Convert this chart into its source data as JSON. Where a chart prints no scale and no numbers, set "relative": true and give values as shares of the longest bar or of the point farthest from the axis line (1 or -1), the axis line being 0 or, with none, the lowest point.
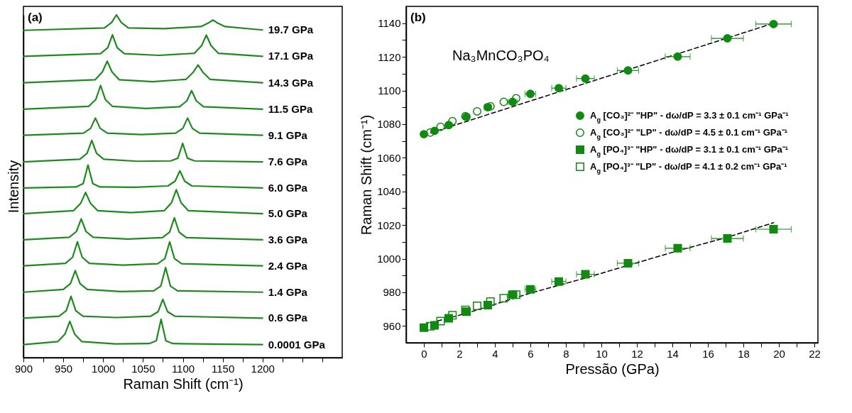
{
  "chart_data": [
    {
      "type": "line",
      "relative": true,
      "xlabel": "Raman Shift (cm⁻¹)",
      "ylabel": "Intensity",
      "xlim": [
        900,
        1300
      ],
      "xticks": [
        900,
        {
          "value": 925,
          "label": null
        },
        950,
        {
          "value": 975,
          "label": null
        },
        1000,
        {
          "value": 1025,
          "label": null
        },
        1050,
        {
          "value": 1075,
          "label": null
        },
        1100,
        {
          "value": 1125,
          "label": null
        },
        1150,
        {
          "value": 1175,
          "label": null
        },
        1200,
        {
          "value": 1225,
          "label": null
        },
        {
          "value": 1250,
          "label": null
        },
        {
          "value": 1275,
          "label": null
        }
      ],
      "annotations": [
        "(a)"
      ],
      "line_style": "solid",
      "series": [
        {
          "name": "19.7 GPa",
          "color": "#1e8a1e",
          "x": [
            900,
            1001.7,
            1010.7,
            1016.7,
            1022.7,
            1031.7,
            1077,
            1122.8,
            1131.8,
            1137.8,
            1143.8,
            1152.8,
            1200
          ],
          "values": [
            0.955,
            0.962,
            0.978,
            1.0,
            0.978,
            0.962,
            0.96,
            0.966,
            0.976,
            0.985,
            0.976,
            0.966,
            0.956
          ]
        },
        {
          "name": "17.1 GPa",
          "color": "#1e8a1e",
          "x": [
            900,
            996.7,
            1005.7,
            1011.7,
            1017.7,
            1026.7,
            1070,
            1114.5,
            1123.5,
            1129.5,
            1135.5,
            1144.5,
            1200
          ],
          "values": [
            0.879,
            0.887,
            0.904,
            0.942,
            0.904,
            0.887,
            0.882,
            0.888,
            0.91,
            0.941,
            0.91,
            0.888,
            0.879
          ]
        },
        {
          "name": "14.3 GPa",
          "color": "#1e8a1e",
          "x": [
            900,
            990.1,
            999.1,
            1005.1,
            1011.1,
            1020.1,
            1062,
            1104.1,
            1113.1,
            1119.1,
            1125.1,
            1134.1,
            1200
          ],
          "values": [
            0.802,
            0.811,
            0.834,
            0.865,
            0.834,
            0.811,
            0.805,
            0.812,
            0.833,
            0.854,
            0.833,
            0.812,
            0.802
          ]
        },
        {
          "name": "11.5 GPa",
          "color": "#1e8a1e",
          "x": [
            900,
            981.8,
            990.8,
            996.8,
            1002.8,
            1011.8,
            1054,
            1096,
            1105,
            1111,
            1117,
            1126,
            1200
          ],
          "values": [
            0.725,
            0.733,
            0.753,
            0.794,
            0.753,
            0.733,
            0.727,
            0.732,
            0.749,
            0.779,
            0.749,
            0.732,
            0.725
          ]
        },
        {
          "name": "9.1 GPa",
          "color": "#1e8a1e",
          "x": [
            900,
            975.3,
            984.3,
            990.3,
            996.3,
            1005.3,
            1048,
            1091,
            1100,
            1106,
            1112,
            1121,
            1200
          ],
          "values": [
            0.649,
            0.655,
            0.669,
            0.699,
            0.669,
            0.655,
            0.651,
            0.655,
            0.669,
            0.699,
            0.669,
            0.655,
            0.649
          ]
        },
        {
          "name": "7.6 GPa",
          "color": "#1e8a1e",
          "x": [
            900,
            970.8,
            979.8,
            985.8,
            991.8,
            1000.8,
            1043,
            1084.8,
            1093.8,
            1099.8,
            1105.8,
            1114.8,
            1200
          ],
          "values": [
            0.571,
            0.579,
            0.596,
            0.634,
            0.596,
            0.579,
            0.573,
            0.574,
            0.582,
            0.625,
            0.582,
            0.574,
            0.571
          ]
        },
        {
          "name": "6.0 GPa",
          "color": "#1e8a1e",
          "x": [
            900,
            966,
            975,
            981,
            987,
            996,
            1040,
            1081.3,
            1090.3,
            1096.3,
            1102.3,
            1111.3,
            1200
          ],
          "values": [
            0.495,
            0.498,
            0.508,
            0.562,
            0.508,
            0.498,
            0.497,
            0.501,
            0.515,
            0.545,
            0.515,
            0.501,
            0.495
          ]
        },
        {
          "name": "5.0 GPa",
          "color": "#1e8a1e",
          "x": [
            900,
            963,
            972,
            978,
            984,
            993,
            1035,
            1076.8,
            1085.8,
            1091.8,
            1097.8,
            1106.8,
            1200
          ],
          "values": [
            0.42,
            0.429,
            0.451,
            0.482,
            0.451,
            0.429,
            0.423,
            0.429,
            0.452,
            0.49,
            0.452,
            0.429,
            0.42
          ]
        },
        {
          "name": "3.6 GPa",
          "color": "#1e8a1e",
          "x": [
            900,
            957.5,
            966.5,
            972.5,
            978.5,
            987.5,
            1031,
            1074.4,
            1083.4,
            1089.4,
            1095.4,
            1104.4,
            1200
          ],
          "values": [
            0.344,
            0.351,
            0.368,
            0.405,
            0.368,
            0.351,
            0.346,
            0.35,
            0.366,
            0.408,
            0.366,
            0.35,
            0.344
          ]
        },
        {
          "name": "2.4 GPa",
          "color": "#1e8a1e",
          "x": [
            900,
            952.7,
            961.7,
            967.7,
            973.7,
            982.7,
            1025,
            1068.5,
            1077.5,
            1083.5,
            1089.5,
            1098.5,
            1200
          ],
          "values": [
            0.268,
            0.275,
            0.293,
            0.338,
            0.293,
            0.275,
            0.27,
            0.274,
            0.289,
            0.338,
            0.289,
            0.274,
            0.268
          ]
        },
        {
          "name": "1.4 GPa",
          "color": "#1e8a1e",
          "x": [
            900,
            950,
            959,
            965,
            971,
            980,
            1022,
            1063.4,
            1072.4,
            1078.4,
            1084.4,
            1093.4,
            1200
          ],
          "values": [
            0.191,
            0.199,
            0.216,
            0.254,
            0.216,
            0.199,
            0.193,
            0.195,
            0.209,
            0.263,
            0.209,
            0.195,
            0.191
          ]
        },
        {
          "name": "0.6 GPa",
          "color": "#1e8a1e",
          "x": [
            900,
            944.7,
            953.7,
            959.7,
            965.7,
            974.7,
            1017,
            1059.9,
            1068.9,
            1074.9,
            1080.9,
            1089.9,
            1200
          ],
          "values": [
            0.115,
            0.121,
            0.137,
            0.179,
            0.137,
            0.121,
            0.117,
            0.121,
            0.134,
            0.17,
            0.134,
            0.121,
            0.115
          ]
        },
        {
          "name": "0.0001 GPa",
          "color": "#1e8a1e",
          "x": [
            900,
            943.2,
            952.2,
            958.2,
            964.2,
            973.2,
            1015,
            1057.7,
            1066.7,
            1072.7,
            1078.7,
            1087.7,
            1200
          ],
          "values": [
            0.038,
            0.047,
            0.069,
            0.106,
            0.069,
            0.047,
            0.04,
            0.041,
            0.049,
            0.112,
            0.049,
            0.041,
            0.038
          ]
        }
      ]
    },
    {
      "type": "scatter",
      "xlabel": "Pressão (GPa)",
      "ylabel": "Raman Shift (cm⁻¹)",
      "xlim": [
        -1,
        22.2
      ],
      "ylim": [
        950,
        1150
      ],
      "xticks": [
        0,
        {
          "value": 1,
          "label": null
        },
        2,
        {
          "value": 3,
          "label": null
        },
        4,
        {
          "value": 5,
          "label": null
        },
        6,
        {
          "value": 7,
          "label": null
        },
        8,
        {
          "value": 9,
          "label": null
        },
        10,
        {
          "value": 11,
          "label": null
        },
        12,
        {
          "value": 13,
          "label": null
        },
        14,
        {
          "value": 15,
          "label": null
        },
        16,
        {
          "value": 17,
          "label": null
        },
        18,
        {
          "value": 19,
          "label": null
        },
        20,
        {
          "value": 21,
          "label": null
        },
        22
      ],
      "yticks": [
        960,
        {
          "value": 970,
          "label": null
        },
        980,
        {
          "value": 990,
          "label": null
        },
        1000,
        {
          "value": 1010,
          "label": null
        },
        1020,
        {
          "value": 1030,
          "label": null
        },
        1040,
        {
          "value": 1050,
          "label": null
        },
        1060,
        {
          "value": 1070,
          "label": null
        },
        1080,
        {
          "value": 1090,
          "label": null
        },
        1100,
        {
          "value": 1110,
          "label": null
        },
        1120,
        {
          "value": 1130,
          "label": null
        },
        1140
      ],
      "legend": "right",
      "annotations": [
        "(b)",
        "Na₃MnCO₃PO₄"
      ],
      "series": [
        {
          "name": "A$_{g}$ [CO₃]²⁻ \"HP\" - dω/dP = 3.3 ± 0.1 cm⁻¹ GPa⁻¹",
          "color": "#108a10",
          "marker": "circle",
          "x": [
            0,
            0.6,
            1.4,
            2.4,
            3.6,
            5.0,
            6.0,
            7.6,
            9.1,
            11.5,
            14.3,
            17.1,
            19.7
          ],
          "values": [
            1074,
            1076,
            1079.4,
            1084.3,
            1090.1,
            1093.2,
            1098,
            1101.4,
            1107.1,
            1111.9,
            1120.1,
            1131,
            1139.5
          ],
          "xerrors": [
            null,
            null,
            null,
            0.15,
            0.2,
            0.25,
            0.3,
            0.4,
            0.5,
            0.6,
            0.7,
            0.9,
            1.0
          ]
        },
        {
          "name": "A$_{g}$ [CO₃]²⁻ \"LP\" - dω/dP = 4.5 ± 0.1 cm⁻¹ GPa⁻¹",
          "color": "#108a10",
          "marker": "circle-open",
          "x": [
            0.36,
            0.94,
            1.61,
            2.34,
            3.0,
            3.75,
            4.5,
            5.2
          ],
          "values": [
            1075,
            1078.4,
            1081.8,
            1084.7,
            1087.6,
            1090.6,
            1093.2,
            1095.4
          ]
        },
        {
          "name": "A$_{g}$ [PO₄]³⁻ \"HP\" - dω/dP = 3.1 ± 0.1 cm⁻¹ GPa⁻¹",
          "color": "#108a10",
          "marker": "square",
          "x": [
            0,
            0.6,
            1.4,
            2.4,
            3.6,
            5.0,
            6.0,
            7.6,
            9.1,
            11.5,
            14.3,
            17.1,
            19.7
          ],
          "values": [
            959,
            960.3,
            964.6,
            968.5,
            972.4,
            978.6,
            981.8,
            986.4,
            990.7,
            997.3,
            1006.2,
            1012,
            1017.5
          ],
          "xerrors": [
            null,
            null,
            null,
            0.15,
            0.2,
            0.25,
            0.3,
            0.4,
            0.5,
            0.6,
            0.7,
            0.9,
            1.0
          ]
        },
        {
          "name": "A$_{g}$ [PO₄]³⁻ \"LP\" - dω/dP = 4.1 ± 0.2 cm⁻¹ GPa⁻¹",
          "color": "#108a10",
          "marker": "square-open",
          "x": [
            0.36,
            0.94,
            1.61,
            2.34,
            3.0,
            3.75,
            4.5,
            5.2
          ],
          "values": [
            959.8,
            962.9,
            966.3,
            969.5,
            971.9,
            974.5,
            976.5,
            978.6
          ]
        },
        {
          "type": "line",
          "color": "#000000",
          "line_style": "dashed",
          "marker": "none",
          "x": [
            0,
            19.7
          ],
          "values": [
            1073.5,
            1140
          ]
        },
        {
          "type": "line",
          "color": "#000000",
          "line_style": "dashed",
          "marker": "none",
          "x": [
            0,
            2.4,
            6,
            9.1,
            11.5,
            14.3,
            17.1,
            19.7
          ],
          "values": [
            960.8,
            967.5,
            979.5,
            988.5,
            996,
            1004.7,
            1012.7,
            1021.4
          ]
        }
      ]
    }
  ]
}
